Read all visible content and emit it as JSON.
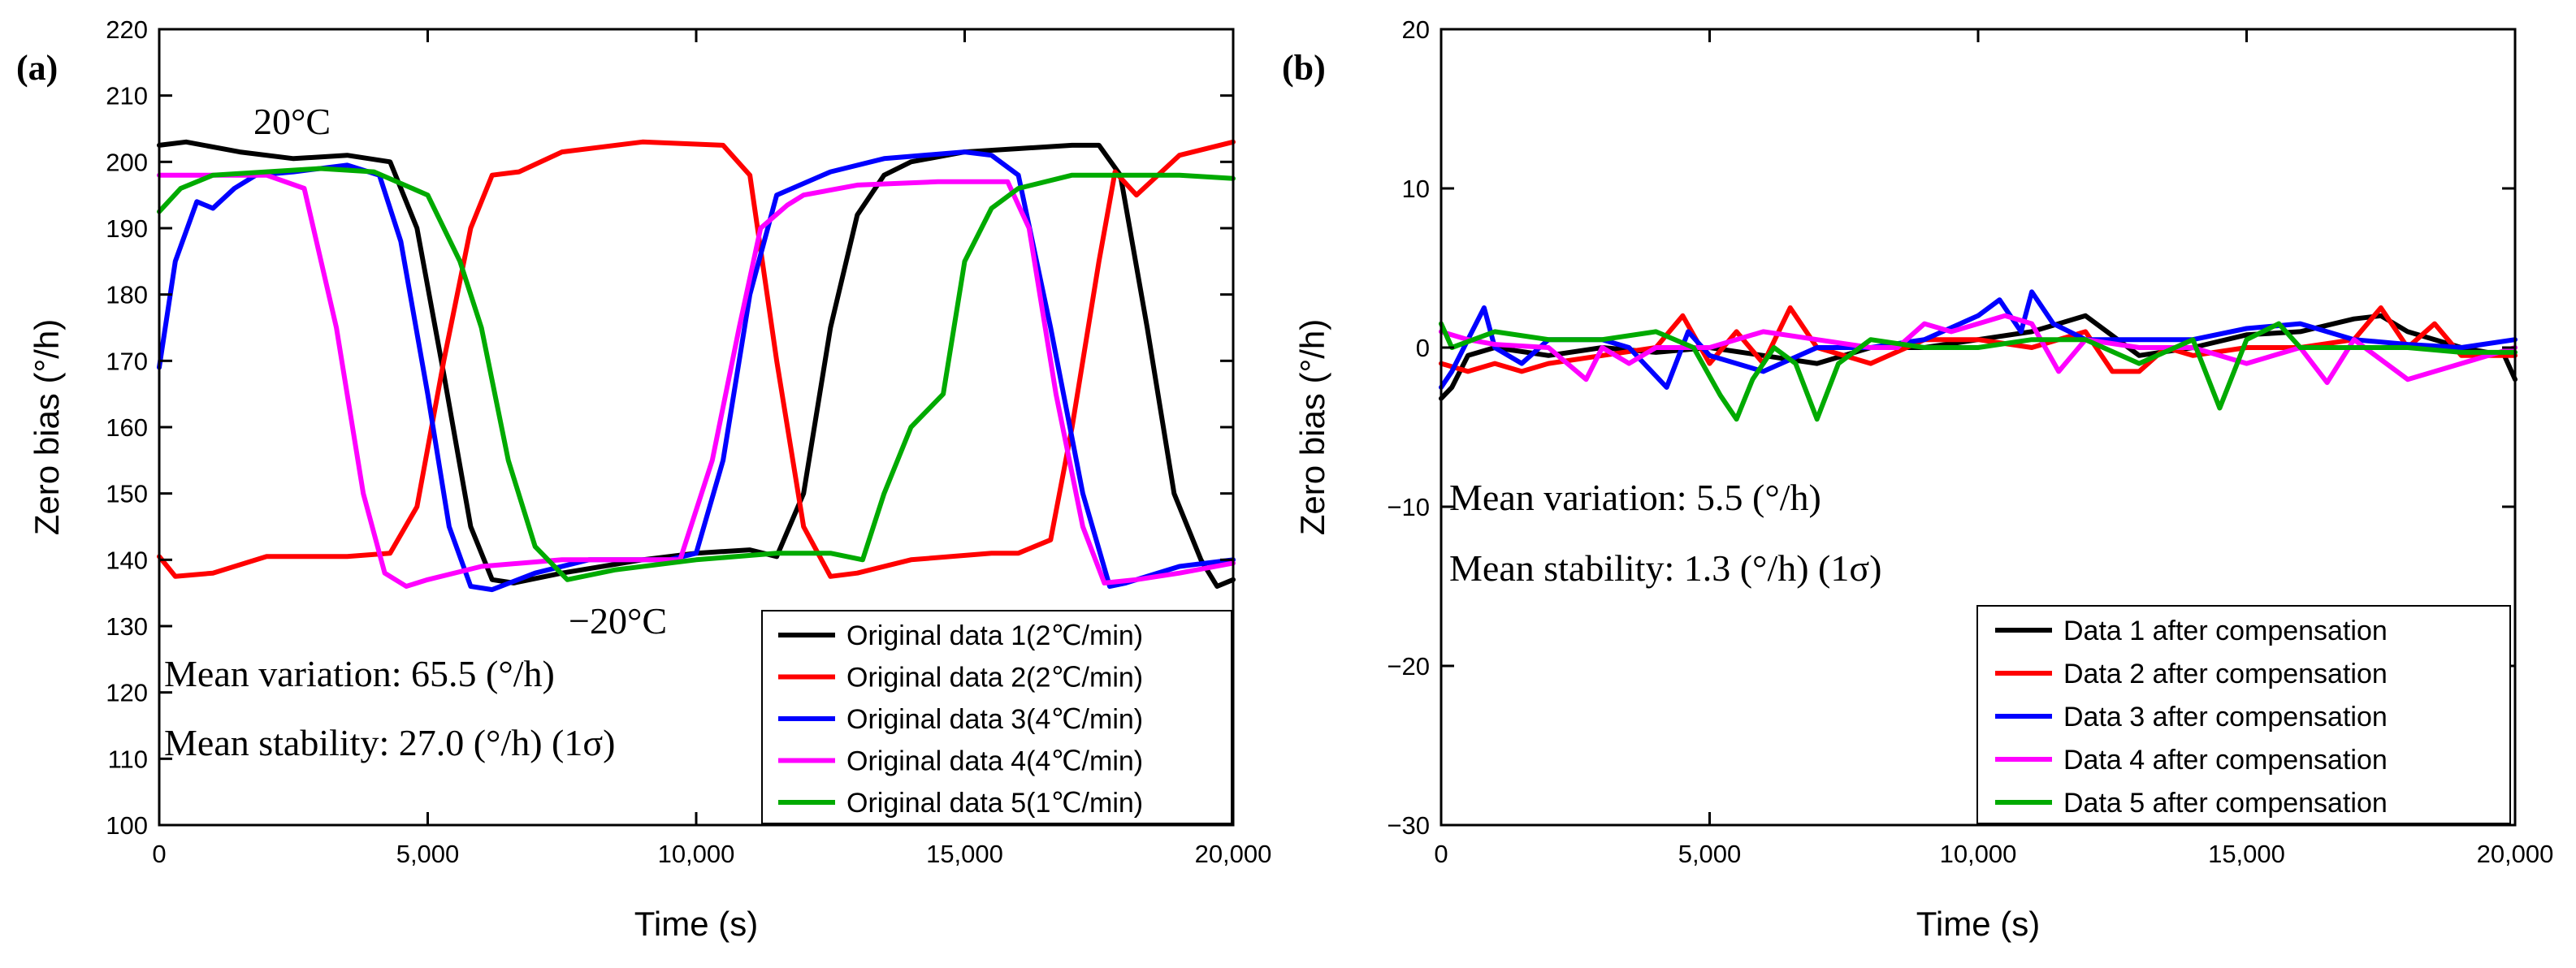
{
  "chart_data": [
    {
      "type": "line",
      "panel_label": "(a)",
      "xlabel": "Time (s)",
      "ylabel": "Zero bias (°/h)",
      "xlim": [
        0,
        20000
      ],
      "ylim": [
        100,
        220
      ],
      "xticks": [
        0,
        5000,
        10000,
        15000,
        20000
      ],
      "xtick_labels": [
        "0",
        "5,000",
        "10,000",
        "15,000",
        "20,000"
      ],
      "yticks": [
        100,
        110,
        120,
        130,
        140,
        150,
        160,
        170,
        180,
        190,
        200,
        210,
        220
      ],
      "ytick_labels": [
        "100",
        "110",
        "120",
        "130",
        "140",
        "150",
        "160",
        "170",
        "180",
        "190",
        "200",
        "210",
        "220"
      ],
      "annotations": [
        {
          "text": "20°C",
          "x": 2300,
          "y": 207
        },
        {
          "text": "−20°C",
          "x": 9100,
          "y": 130.5
        }
      ],
      "stats": [
        "Mean variation: 65.5 (°/h)",
        "Mean stability: 27.0 (°/h) (1σ)"
      ],
      "legend_position": "bottom-right",
      "series": [
        {
          "name": "Original data 1(2℃/min)",
          "color": "#000000",
          "x": [
            0,
            500,
            1500,
            2500,
            3500,
            4300,
            4800,
            5300,
            5800,
            6200,
            6600,
            7500,
            9000,
            10000,
            11000,
            11500,
            12000,
            12500,
            13000,
            13500,
            14000,
            15000,
            16000,
            17000,
            17500,
            17900,
            18400,
            18900,
            19400,
            19700,
            20000
          ],
          "y": [
            202.5,
            203,
            201.5,
            200.5,
            201,
            200,
            190,
            168,
            145,
            137,
            136.5,
            138,
            140,
            141,
            141.5,
            140.5,
            150,
            175,
            192,
            198,
            200,
            201.5,
            202,
            202.5,
            202.5,
            198,
            175,
            150,
            140,
            136,
            137
          ]
        },
        {
          "name": "Original data 2(2℃/min)",
          "color": "#ff0000",
          "x": [
            0,
            300,
            1000,
            2000,
            3500,
            4300,
            4800,
            5300,
            5800,
            6200,
            6700,
            7500,
            9000,
            10500,
            11000,
            11500,
            12000,
            12500,
            13000,
            14000,
            15500,
            16000,
            16600,
            17000,
            17500,
            17800,
            18200,
            19000,
            20000
          ],
          "y": [
            140.5,
            137.5,
            138,
            140.5,
            140.5,
            141,
            148,
            170,
            190,
            198,
            198.5,
            201.5,
            203,
            202.5,
            198,
            170,
            145,
            137.5,
            138,
            140,
            141,
            141,
            143,
            160,
            185,
            198.5,
            195,
            201,
            203
          ]
        },
        {
          "name": "Original data 3(4℃/min)",
          "color": "#0000ff",
          "x": [
            0,
            300,
            700,
            1000,
            1400,
            1800,
            2500,
            3500,
            4100,
            4500,
            5000,
            5400,
            5800,
            6200,
            7000,
            8000,
            9500,
            10000,
            10500,
            11000,
            11500,
            12500,
            13500,
            15000,
            15500,
            16000,
            16600,
            17200,
            17700,
            18000,
            19000,
            20000
          ],
          "y": [
            169,
            185,
            194,
            193,
            196,
            198,
            198.5,
            199.5,
            198,
            188,
            165,
            145,
            136,
            135.5,
            138,
            140,
            140,
            141,
            155,
            180,
            195,
            198.5,
            200.5,
            201.5,
            201,
            198,
            175,
            150,
            136,
            136.5,
            139,
            140
          ]
        },
        {
          "name": "Original data 4(4℃/min)",
          "color": "#ff00ff",
          "x": [
            0,
            1000,
            2000,
            2700,
            3300,
            3800,
            4200,
            4600,
            5000,
            6000,
            7500,
            9000,
            9700,
            10300,
            10800,
            11200,
            11700,
            12000,
            13000,
            14500,
            15800,
            16200,
            16700,
            17200,
            17600,
            18200,
            19000,
            20000
          ],
          "y": [
            198,
            198,
            198,
            196,
            175,
            150,
            138,
            136,
            137,
            139,
            140,
            140,
            140,
            155,
            175,
            190,
            193.5,
            195,
            196.5,
            197,
            197,
            190,
            165,
            145,
            136.5,
            137,
            138,
            139.5
          ]
        },
        {
          "name": "Original data 5(1℃/min)",
          "color": "#00aa00",
          "x": [
            0,
            400,
            1000,
            2000,
            3000,
            4000,
            5000,
            5600,
            6000,
            6500,
            7000,
            7600,
            8500,
            10000,
            11500,
            12500,
            13100,
            13500,
            14000,
            14600,
            15000,
            15500,
            16000,
            17000,
            18000,
            19000,
            20000
          ],
          "y": [
            192.5,
            196,
            198,
            198.5,
            199,
            198.5,
            195,
            185,
            175,
            155,
            142,
            137,
            138.5,
            140,
            141,
            141,
            140,
            150,
            160,
            165,
            185,
            193,
            196,
            198,
            198,
            198,
            197.5
          ]
        }
      ]
    },
    {
      "type": "line",
      "panel_label": "(b)",
      "xlabel": "Time (s)",
      "ylabel": "Zero bias (°/h)",
      "xlim": [
        0,
        20000
      ],
      "ylim": [
        -30,
        20
      ],
      "xticks": [
        0,
        5000,
        10000,
        15000,
        20000
      ],
      "xtick_labels": [
        "0",
        "5,000",
        "10,000",
        "15,000",
        "20,000"
      ],
      "yticks": [
        -30,
        -20,
        -10,
        0,
        10,
        20
      ],
      "ytick_labels": [
        "−30",
        "−20",
        "−10",
        "0",
        "10",
        "20"
      ],
      "stats": [
        "Mean variation: 5.5 (°/h)",
        "Mean stability: 1.3 (°/h) (1σ)"
      ],
      "legend_position": "bottom-right",
      "series": [
        {
          "name": "Data 1 after compensation",
          "color": "#000000",
          "x": [
            0,
            200,
            500,
            1000,
            2000,
            3000,
            4000,
            5000,
            6000,
            7000,
            8000,
            9000,
            10000,
            11000,
            11500,
            12000,
            13000,
            14000,
            15000,
            16000,
            17000,
            17500,
            18000,
            19000,
            19800,
            20000
          ],
          "y": [
            -3.2,
            -2.5,
            -0.5,
            0,
            -0.5,
            0,
            -0.3,
            0,
            -0.5,
            -1,
            0,
            0,
            0.5,
            1,
            1.5,
            2,
            -0.5,
            0,
            0.8,
            1,
            1.8,
            2,
            1,
            0,
            -0.5,
            -2
          ]
        },
        {
          "name": "Data 2 after compensation",
          "color": "#ff0000",
          "x": [
            0,
            500,
            1000,
            1500,
            2000,
            3000,
            4000,
            4500,
            5000,
            5500,
            6000,
            6500,
            7000,
            8000,
            9000,
            10000,
            11000,
            12000,
            12500,
            13000,
            13500,
            14000,
            15000,
            16000,
            17000,
            17500,
            18000,
            18500,
            19000,
            20000
          ],
          "y": [
            -1,
            -1.5,
            -1,
            -1.5,
            -1,
            -0.5,
            0,
            2,
            -1,
            1,
            -1,
            2.5,
            0,
            -1,
            0.5,
            0.5,
            0,
            1,
            -1.5,
            -1.5,
            0,
            -0.5,
            0,
            0,
            0.5,
            2.5,
            0,
            1.5,
            -0.5,
            -0.5
          ]
        },
        {
          "name": "Data 3 after compensation",
          "color": "#0000ff",
          "x": [
            0,
            200,
            500,
            800,
            1000,
            1500,
            2000,
            3000,
            3500,
            4200,
            4600,
            5000,
            6000,
            7000,
            8000,
            9000,
            10000,
            10400,
            10800,
            11000,
            11400,
            12000,
            13000,
            14000,
            15000,
            16000,
            17000,
            18000,
            19000,
            20000
          ],
          "y": [
            -2.5,
            -1.5,
            0.5,
            2.5,
            0,
            -1,
            0.5,
            0.5,
            0,
            -2.5,
            1,
            -0.5,
            -1.5,
            0,
            0,
            0.5,
            2,
            3,
            1,
            3.5,
            1.5,
            0.5,
            0.5,
            0.5,
            1.2,
            1.5,
            0.5,
            0.2,
            0,
            0.5
          ]
        },
        {
          "name": "Data 4 after compensation",
          "color": "#ff00ff",
          "x": [
            0,
            500,
            1000,
            2000,
            2700,
            3000,
            3500,
            4000,
            5000,
            6000,
            7000,
            8000,
            8500,
            9000,
            9500,
            10000,
            10500,
            11000,
            11500,
            12000,
            13000,
            14000,
            15000,
            16000,
            16500,
            17000,
            18000,
            19000,
            20000
          ],
          "y": [
            1,
            0.5,
            0.2,
            0,
            -2,
            0,
            -1,
            0,
            0,
            1,
            0.5,
            0,
            0,
            1.5,
            1,
            1.5,
            2,
            1.5,
            -1.5,
            0.5,
            0,
            0,
            -1,
            0,
            -2.2,
            0.5,
            -2,
            -1,
            0
          ]
        },
        {
          "name": "Data 5 after compensation",
          "color": "#00aa00",
          "x": [
            0,
            200,
            600,
            1000,
            2000,
            3000,
            4000,
            4700,
            5200,
            5500,
            5800,
            6200,
            6600,
            7000,
            7400,
            8000,
            9000,
            10000,
            11000,
            12000,
            13000,
            14000,
            14500,
            15000,
            15600,
            16000,
            17000,
            18000,
            19000,
            20000
          ],
          "y": [
            1.5,
            0,
            0.5,
            1,
            0.5,
            0.5,
            1,
            0,
            -3,
            -4.5,
            -2,
            0,
            -1,
            -4.5,
            -1,
            0.5,
            0,
            0,
            0.5,
            0.5,
            -1,
            0.5,
            -3.8,
            0.5,
            1.5,
            0,
            0,
            0,
            -0.3,
            -0.3
          ]
        }
      ]
    }
  ]
}
